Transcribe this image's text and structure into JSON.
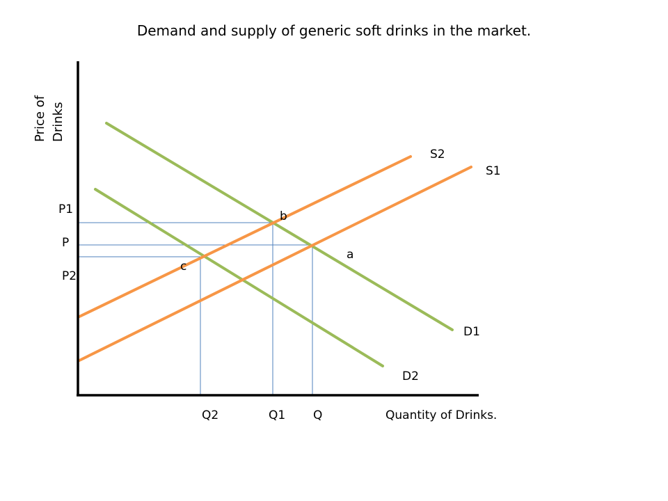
{
  "title": "Demand and supply of generic soft drinks in the market.",
  "axes": {
    "y_label_line1": "Price of",
    "y_label_line2": "Drinks",
    "x_label": "Quantity of Drinks."
  },
  "colors": {
    "supply": "#F79646",
    "demand": "#9BBB59",
    "guide": "#4F81BD",
    "axis": "#000000"
  },
  "curves": [
    {
      "id": "S1",
      "label": "S1",
      "kind": "supply"
    },
    {
      "id": "S2",
      "label": "S2",
      "kind": "supply"
    },
    {
      "id": "D1",
      "label": "D1",
      "kind": "demand"
    },
    {
      "id": "D2",
      "label": "D2",
      "kind": "demand"
    }
  ],
  "points": [
    {
      "id": "a",
      "label": "a"
    },
    {
      "id": "b",
      "label": "b"
    },
    {
      "id": "c",
      "label": "c"
    }
  ],
  "price_labels": [
    "P1",
    "P",
    "P2"
  ],
  "quantity_labels": [
    "Q2",
    "Q1",
    "Q"
  ]
}
